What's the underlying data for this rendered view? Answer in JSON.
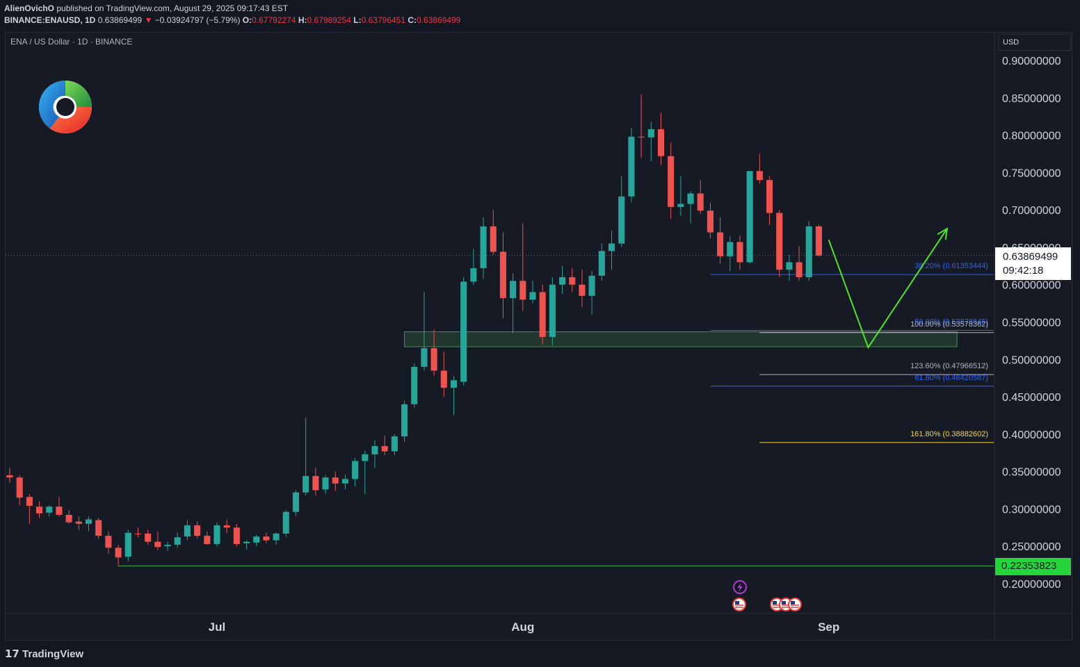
{
  "header": {
    "author": "AlienOvichO",
    "published_text": "published on TradingView.com, August 29, 2025 09:17:43 EST",
    "symbol_line": "BINANCE:ENAUSD, 1D",
    "last_price": "0.63869499",
    "change_arrow": "▼",
    "change": "−0.03924797 (−5.79%)",
    "o_label": "O:",
    "o_value": "0.67792274",
    "h_label": "H:",
    "h_value": "0.67989254",
    "l_label": "L:",
    "l_value": "0.63796451",
    "c_label": "C:",
    "c_value": "0.63869499"
  },
  "chart_header": {
    "symbol_description": "ENA / US Dollar · 1D · BINANCE"
  },
  "price_scale": {
    "currency": "USD",
    "current_price": "0.63869499",
    "countdown": "09:42:18",
    "low_marker_price": "0.22353823"
  },
  "footer": {
    "logo_text": "TradingView"
  },
  "colors": {
    "background": "#131722",
    "pane": "#161a25",
    "up": "#26a69a",
    "down": "#ef5350",
    "fib_blue": "#2962ff",
    "fib_gray": "#b2b5be",
    "fib_yellow": "#f5d63a",
    "projection": "#4ee62a",
    "support_line": "#4caf50",
    "zone_fill": "#2e5a38"
  },
  "chart_data": {
    "type": "candlestick",
    "symbol": "ENA / US Dollar",
    "timeframe": "1D",
    "exchange": "BINANCE",
    "ylim": [
      0.17,
      0.94
    ],
    "y_ticks": [
      0.9,
      0.85,
      0.8,
      0.75,
      0.7,
      0.65,
      0.6,
      0.55,
      0.5,
      0.45,
      0.4,
      0.35,
      0.3,
      0.25,
      0.2
    ],
    "y_tick_labels": [
      "0.90000000",
      "0.85000000",
      "0.80000000",
      "0.75000000",
      "0.70000000",
      "0.65000000",
      "0.60000000",
      "0.55000000",
      "0.50000000",
      "0.45000000",
      "0.40000000",
      "0.35000000",
      "0.30000000",
      "0.25000000",
      "0.20000000"
    ],
    "x_start_date": "2025-06-10",
    "x_end_date": "2025-09-24",
    "x_ticks": [
      {
        "date": "2025-07-01",
        "label": "Jul"
      },
      {
        "date": "2025-08-01",
        "label": "Aug"
      },
      {
        "date": "2025-09-01",
        "label": "Sep"
      }
    ],
    "candles": [
      {
        "date": "2025-06-10",
        "o": 0.345,
        "h": 0.355,
        "l": 0.335,
        "c": 0.342
      },
      {
        "date": "2025-06-11",
        "o": 0.342,
        "h": 0.345,
        "l": 0.305,
        "c": 0.315
      },
      {
        "date": "2025-06-12",
        "o": 0.316,
        "h": 0.32,
        "l": 0.28,
        "c": 0.304
      },
      {
        "date": "2025-06-13",
        "o": 0.303,
        "h": 0.31,
        "l": 0.288,
        "c": 0.294
      },
      {
        "date": "2025-06-14",
        "o": 0.295,
        "h": 0.305,
        "l": 0.29,
        "c": 0.303
      },
      {
        "date": "2025-06-15",
        "o": 0.303,
        "h": 0.316,
        "l": 0.29,
        "c": 0.292
      },
      {
        "date": "2025-06-16",
        "o": 0.292,
        "h": 0.298,
        "l": 0.28,
        "c": 0.282
      },
      {
        "date": "2025-06-17",
        "o": 0.283,
        "h": 0.29,
        "l": 0.272,
        "c": 0.28
      },
      {
        "date": "2025-06-18",
        "o": 0.28,
        "h": 0.29,
        "l": 0.27,
        "c": 0.286
      },
      {
        "date": "2025-06-19",
        "o": 0.285,
        "h": 0.288,
        "l": 0.26,
        "c": 0.264
      },
      {
        "date": "2025-06-20",
        "o": 0.264,
        "h": 0.27,
        "l": 0.24,
        "c": 0.248
      },
      {
        "date": "2025-06-21",
        "o": 0.248,
        "h": 0.252,
        "l": 0.224,
        "c": 0.235
      },
      {
        "date": "2025-06-22",
        "o": 0.236,
        "h": 0.272,
        "l": 0.23,
        "c": 0.268
      },
      {
        "date": "2025-06-23",
        "o": 0.267,
        "h": 0.275,
        "l": 0.262,
        "c": 0.266
      },
      {
        "date": "2025-06-24",
        "o": 0.267,
        "h": 0.272,
        "l": 0.252,
        "c": 0.256
      },
      {
        "date": "2025-06-25",
        "o": 0.256,
        "h": 0.27,
        "l": 0.245,
        "c": 0.249
      },
      {
        "date": "2025-06-26",
        "o": 0.25,
        "h": 0.256,
        "l": 0.244,
        "c": 0.252
      },
      {
        "date": "2025-06-27",
        "o": 0.252,
        "h": 0.268,
        "l": 0.248,
        "c": 0.262
      },
      {
        "date": "2025-06-28",
        "o": 0.263,
        "h": 0.285,
        "l": 0.258,
        "c": 0.278
      },
      {
        "date": "2025-06-29",
        "o": 0.278,
        "h": 0.283,
        "l": 0.26,
        "c": 0.264
      },
      {
        "date": "2025-06-30",
        "o": 0.264,
        "h": 0.27,
        "l": 0.252,
        "c": 0.253
      },
      {
        "date": "2025-07-01",
        "o": 0.253,
        "h": 0.282,
        "l": 0.25,
        "c": 0.278
      },
      {
        "date": "2025-07-02",
        "o": 0.278,
        "h": 0.286,
        "l": 0.268,
        "c": 0.275
      },
      {
        "date": "2025-07-03",
        "o": 0.275,
        "h": 0.28,
        "l": 0.25,
        "c": 0.253
      },
      {
        "date": "2025-07-04",
        "o": 0.254,
        "h": 0.258,
        "l": 0.246,
        "c": 0.256
      },
      {
        "date": "2025-07-05",
        "o": 0.255,
        "h": 0.265,
        "l": 0.25,
        "c": 0.263
      },
      {
        "date": "2025-07-06",
        "o": 0.263,
        "h": 0.268,
        "l": 0.254,
        "c": 0.258
      },
      {
        "date": "2025-07-07",
        "o": 0.258,
        "h": 0.268,
        "l": 0.252,
        "c": 0.267
      },
      {
        "date": "2025-07-08",
        "o": 0.267,
        "h": 0.298,
        "l": 0.262,
        "c": 0.296
      },
      {
        "date": "2025-07-09",
        "o": 0.296,
        "h": 0.325,
        "l": 0.29,
        "c": 0.322
      },
      {
        "date": "2025-07-10",
        "o": 0.322,
        "h": 0.422,
        "l": 0.318,
        "c": 0.344
      },
      {
        "date": "2025-07-11",
        "o": 0.344,
        "h": 0.355,
        "l": 0.318,
        "c": 0.325
      },
      {
        "date": "2025-07-12",
        "o": 0.326,
        "h": 0.345,
        "l": 0.32,
        "c": 0.342
      },
      {
        "date": "2025-07-13",
        "o": 0.342,
        "h": 0.35,
        "l": 0.324,
        "c": 0.334
      },
      {
        "date": "2025-07-14",
        "o": 0.334,
        "h": 0.346,
        "l": 0.326,
        "c": 0.34
      },
      {
        "date": "2025-07-15",
        "o": 0.34,
        "h": 0.368,
        "l": 0.33,
        "c": 0.364
      },
      {
        "date": "2025-07-16",
        "o": 0.364,
        "h": 0.378,
        "l": 0.32,
        "c": 0.373
      },
      {
        "date": "2025-07-17",
        "o": 0.373,
        "h": 0.392,
        "l": 0.355,
        "c": 0.384
      },
      {
        "date": "2025-07-18",
        "o": 0.384,
        "h": 0.398,
        "l": 0.372,
        "c": 0.377
      },
      {
        "date": "2025-07-19",
        "o": 0.377,
        "h": 0.4,
        "l": 0.372,
        "c": 0.397
      },
      {
        "date": "2025-07-20",
        "o": 0.397,
        "h": 0.445,
        "l": 0.39,
        "c": 0.44
      },
      {
        "date": "2025-07-21",
        "o": 0.44,
        "h": 0.495,
        "l": 0.435,
        "c": 0.49
      },
      {
        "date": "2025-07-22",
        "o": 0.49,
        "h": 0.59,
        "l": 0.485,
        "c": 0.515
      },
      {
        "date": "2025-07-23",
        "o": 0.515,
        "h": 0.54,
        "l": 0.478,
        "c": 0.485
      },
      {
        "date": "2025-07-24",
        "o": 0.485,
        "h": 0.51,
        "l": 0.45,
        "c": 0.462
      },
      {
        "date": "2025-07-25",
        "o": 0.462,
        "h": 0.478,
        "l": 0.425,
        "c": 0.472
      },
      {
        "date": "2025-07-26",
        "o": 0.47,
        "h": 0.61,
        "l": 0.465,
        "c": 0.604
      },
      {
        "date": "2025-07-27",
        "o": 0.604,
        "h": 0.648,
        "l": 0.6,
        "c": 0.622
      },
      {
        "date": "2025-07-28",
        "o": 0.622,
        "h": 0.69,
        "l": 0.608,
        "c": 0.678
      },
      {
        "date": "2025-07-29",
        "o": 0.678,
        "h": 0.7,
        "l": 0.64,
        "c": 0.644
      },
      {
        "date": "2025-07-30",
        "o": 0.644,
        "h": 0.67,
        "l": 0.555,
        "c": 0.582
      },
      {
        "date": "2025-07-31",
        "o": 0.582,
        "h": 0.615,
        "l": 0.535,
        "c": 0.605
      },
      {
        "date": "2025-08-01",
        "o": 0.605,
        "h": 0.682,
        "l": 0.565,
        "c": 0.58
      },
      {
        "date": "2025-08-02",
        "o": 0.58,
        "h": 0.605,
        "l": 0.575,
        "c": 0.59
      },
      {
        "date": "2025-08-03",
        "o": 0.59,
        "h": 0.6,
        "l": 0.52,
        "c": 0.53
      },
      {
        "date": "2025-08-04",
        "o": 0.53,
        "h": 0.61,
        "l": 0.518,
        "c": 0.6
      },
      {
        "date": "2025-08-05",
        "o": 0.6,
        "h": 0.625,
        "l": 0.588,
        "c": 0.61
      },
      {
        "date": "2025-08-06",
        "o": 0.61,
        "h": 0.622,
        "l": 0.59,
        "c": 0.6
      },
      {
        "date": "2025-08-07",
        "o": 0.6,
        "h": 0.62,
        "l": 0.57,
        "c": 0.585
      },
      {
        "date": "2025-08-08",
        "o": 0.585,
        "h": 0.618,
        "l": 0.56,
        "c": 0.612
      },
      {
        "date": "2025-08-09",
        "o": 0.612,
        "h": 0.655,
        "l": 0.605,
        "c": 0.645
      },
      {
        "date": "2025-08-10",
        "o": 0.645,
        "h": 0.672,
        "l": 0.62,
        "c": 0.655
      },
      {
        "date": "2025-08-11",
        "o": 0.655,
        "h": 0.745,
        "l": 0.65,
        "c": 0.718
      },
      {
        "date": "2025-08-12",
        "o": 0.718,
        "h": 0.81,
        "l": 0.71,
        "c": 0.798
      },
      {
        "date": "2025-08-13",
        "o": 0.798,
        "h": 0.854,
        "l": 0.77,
        "c": 0.797
      },
      {
        "date": "2025-08-14",
        "o": 0.797,
        "h": 0.818,
        "l": 0.765,
        "c": 0.808
      },
      {
        "date": "2025-08-15",
        "o": 0.808,
        "h": 0.83,
        "l": 0.76,
        "c": 0.772
      },
      {
        "date": "2025-08-16",
        "o": 0.772,
        "h": 0.79,
        "l": 0.688,
        "c": 0.704
      },
      {
        "date": "2025-08-17",
        "o": 0.704,
        "h": 0.745,
        "l": 0.692,
        "c": 0.708
      },
      {
        "date": "2025-08-18",
        "o": 0.708,
        "h": 0.725,
        "l": 0.682,
        "c": 0.722
      },
      {
        "date": "2025-08-19",
        "o": 0.722,
        "h": 0.74,
        "l": 0.695,
        "c": 0.699
      },
      {
        "date": "2025-08-20",
        "o": 0.699,
        "h": 0.71,
        "l": 0.662,
        "c": 0.67
      },
      {
        "date": "2025-08-21",
        "o": 0.67,
        "h": 0.69,
        "l": 0.628,
        "c": 0.638
      },
      {
        "date": "2025-08-22",
        "o": 0.638,
        "h": 0.665,
        "l": 0.618,
        "c": 0.657
      },
      {
        "date": "2025-08-23",
        "o": 0.657,
        "h": 0.666,
        "l": 0.62,
        "c": 0.63
      },
      {
        "date": "2025-08-24",
        "o": 0.63,
        "h": 0.752,
        "l": 0.628,
        "c": 0.752
      },
      {
        "date": "2025-08-25",
        "o": 0.752,
        "h": 0.775,
        "l": 0.735,
        "c": 0.74
      },
      {
        "date": "2025-08-26",
        "o": 0.74,
        "h": 0.745,
        "l": 0.68,
        "c": 0.696
      },
      {
        "date": "2025-08-27",
        "o": 0.696,
        "h": 0.7,
        "l": 0.61,
        "c": 0.62
      },
      {
        "date": "2025-08-28",
        "o": 0.62,
        "h": 0.64,
        "l": 0.605,
        "c": 0.63
      },
      {
        "date": "2025-08-29",
        "o": 0.63,
        "h": 0.652,
        "l": 0.605,
        "c": 0.61
      },
      {
        "date": "2025-08-30",
        "o": 0.61,
        "h": 0.685,
        "l": 0.605,
        "c": 0.678
      },
      {
        "date": "2025-08-31",
        "o": 0.678,
        "h": 0.68,
        "l": 0.638,
        "c": 0.639
      }
    ],
    "fib_levels": [
      {
        "label": "38.20% (0.61353444)",
        "value": 0.61353444,
        "color": "#2962ff",
        "start_date": "2025-08-20",
        "end_date": "2025-09-24"
      },
      {
        "label": "50.00% (0.53878845)",
        "value": 0.53878845,
        "color": "#2962ff",
        "start_date": "2025-08-20",
        "end_date": "2025-09-24"
      },
      {
        "label": "61.80% (0.46420587)",
        "value": 0.46420587,
        "color": "#2962ff",
        "start_date": "2025-08-20",
        "end_date": "2025-09-24"
      },
      {
        "label": "100.00% (0.53578362)",
        "value": 0.53578362,
        "color": "#b2b5be",
        "start_date": "2025-08-25",
        "end_date": "2025-09-24"
      },
      {
        "label": "123.60% (0.47966512)",
        "value": 0.47966512,
        "color": "#b2b5be",
        "start_date": "2025-08-25",
        "end_date": "2025-09-24"
      },
      {
        "label": "161.80% (0.38882602)",
        "value": 0.38882602,
        "color": "#f5d63a",
        "start_date": "2025-08-25",
        "end_date": "2025-09-24"
      }
    ],
    "support_zone": {
      "low": 0.517,
      "high": 0.537,
      "start_date": "2025-07-20",
      "end_date": "2025-09-14"
    },
    "support_line": {
      "value": 0.22353823,
      "start_date": "2025-06-21"
    },
    "projection_path": [
      {
        "date": "2025-09-01",
        "price": 0.66
      },
      {
        "date": "2025-09-05",
        "price": 0.516
      },
      {
        "date": "2025-09-13",
        "price": 0.675
      }
    ]
  }
}
